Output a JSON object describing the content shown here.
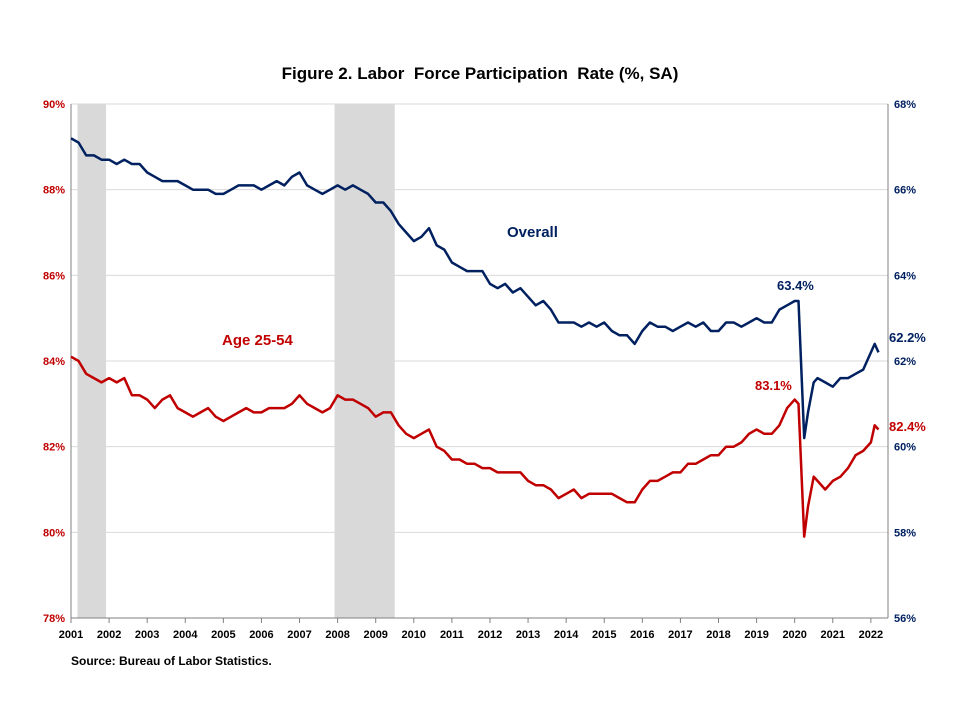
{
  "chart_data": {
    "type": "line",
    "title": "Figure 2. Labor  Force Participation  Rate (%, SA)",
    "source": "Source: Bureau of Labor Statistics.",
    "colors": {
      "overall": "#002060",
      "age_25_54": "#c00000",
      "recession": "#d9d9d9",
      "grid": "#d9d9d9"
    },
    "grid": true,
    "x_ticks": [
      "2001",
      "2002",
      "2003",
      "2004",
      "2005",
      "2006",
      "2007",
      "2008",
      "2009",
      "2010",
      "2011",
      "2012",
      "2013",
      "2014",
      "2015",
      "2016",
      "2017",
      "2018",
      "2019",
      "2020",
      "2021",
      "2022"
    ],
    "y_left": {
      "ticks": [
        "78%",
        "80%",
        "82%",
        "84%",
        "86%",
        "88%",
        "90%"
      ],
      "range": [
        78,
        90
      ]
    },
    "y_right": {
      "ticks": [
        "56%",
        "58%",
        "60%",
        "62%",
        "64%",
        "66%",
        "68%"
      ],
      "range": [
        56,
        68
      ]
    },
    "recessions": [
      {
        "start": 2001.17,
        "end": 2001.92
      },
      {
        "start": 2007.92,
        "end": 2009.5
      }
    ],
    "annotations": {
      "overall_label": "Overall",
      "age_label": "Age 25-54",
      "overall_peak": "63.4%",
      "overall_last": "62.2%",
      "age_peak": "83.1%",
      "age_last": "82.4%"
    },
    "series": [
      {
        "name": "Overall",
        "axis": "right",
        "points": [
          [
            2001.0,
            67.2
          ],
          [
            2001.2,
            67.1
          ],
          [
            2001.4,
            66.8
          ],
          [
            2001.6,
            66.8
          ],
          [
            2001.8,
            66.7
          ],
          [
            2002.0,
            66.7
          ],
          [
            2002.2,
            66.6
          ],
          [
            2002.4,
            66.7
          ],
          [
            2002.6,
            66.6
          ],
          [
            2002.8,
            66.6
          ],
          [
            2003.0,
            66.4
          ],
          [
            2003.2,
            66.3
          ],
          [
            2003.4,
            66.2
          ],
          [
            2003.6,
            66.2
          ],
          [
            2003.8,
            66.2
          ],
          [
            2004.0,
            66.1
          ],
          [
            2004.2,
            66.0
          ],
          [
            2004.4,
            66.0
          ],
          [
            2004.6,
            66.0
          ],
          [
            2004.8,
            65.9
          ],
          [
            2005.0,
            65.9
          ],
          [
            2005.2,
            66.0
          ],
          [
            2005.4,
            66.1
          ],
          [
            2005.6,
            66.1
          ],
          [
            2005.8,
            66.1
          ],
          [
            2006.0,
            66.0
          ],
          [
            2006.2,
            66.1
          ],
          [
            2006.4,
            66.2
          ],
          [
            2006.6,
            66.1
          ],
          [
            2006.8,
            66.3
          ],
          [
            2007.0,
            66.4
          ],
          [
            2007.2,
            66.1
          ],
          [
            2007.4,
            66.0
          ],
          [
            2007.6,
            65.9
          ],
          [
            2007.8,
            66.0
          ],
          [
            2008.0,
            66.1
          ],
          [
            2008.2,
            66.0
          ],
          [
            2008.4,
            66.1
          ],
          [
            2008.6,
            66.0
          ],
          [
            2008.8,
            65.9
          ],
          [
            2009.0,
            65.7
          ],
          [
            2009.2,
            65.7
          ],
          [
            2009.4,
            65.5
          ],
          [
            2009.6,
            65.2
          ],
          [
            2009.8,
            65.0
          ],
          [
            2010.0,
            64.8
          ],
          [
            2010.2,
            64.9
          ],
          [
            2010.4,
            65.1
          ],
          [
            2010.6,
            64.7
          ],
          [
            2010.8,
            64.6
          ],
          [
            2011.0,
            64.3
          ],
          [
            2011.2,
            64.2
          ],
          [
            2011.4,
            64.1
          ],
          [
            2011.6,
            64.1
          ],
          [
            2011.8,
            64.1
          ],
          [
            2012.0,
            63.8
          ],
          [
            2012.2,
            63.7
          ],
          [
            2012.4,
            63.8
          ],
          [
            2012.6,
            63.6
          ],
          [
            2012.8,
            63.7
          ],
          [
            2013.0,
            63.5
          ],
          [
            2013.2,
            63.3
          ],
          [
            2013.4,
            63.4
          ],
          [
            2013.6,
            63.2
          ],
          [
            2013.8,
            62.9
          ],
          [
            2014.0,
            62.9
          ],
          [
            2014.2,
            62.9
          ],
          [
            2014.4,
            62.8
          ],
          [
            2014.6,
            62.9
          ],
          [
            2014.8,
            62.8
          ],
          [
            2015.0,
            62.9
          ],
          [
            2015.2,
            62.7
          ],
          [
            2015.4,
            62.6
          ],
          [
            2015.6,
            62.6
          ],
          [
            2015.8,
            62.4
          ],
          [
            2016.0,
            62.7
          ],
          [
            2016.2,
            62.9
          ],
          [
            2016.4,
            62.8
          ],
          [
            2016.6,
            62.8
          ],
          [
            2016.8,
            62.7
          ],
          [
            2017.0,
            62.8
          ],
          [
            2017.2,
            62.9
          ],
          [
            2017.4,
            62.8
          ],
          [
            2017.6,
            62.9
          ],
          [
            2017.8,
            62.7
          ],
          [
            2018.0,
            62.7
          ],
          [
            2018.2,
            62.9
          ],
          [
            2018.4,
            62.9
          ],
          [
            2018.6,
            62.8
          ],
          [
            2018.8,
            62.9
          ],
          [
            2019.0,
            63.0
          ],
          [
            2019.2,
            62.9
          ],
          [
            2019.4,
            62.9
          ],
          [
            2019.6,
            63.2
          ],
          [
            2019.8,
            63.3
          ],
          [
            2020.0,
            63.4
          ],
          [
            2020.1,
            63.4
          ],
          [
            2020.25,
            60.2
          ],
          [
            2020.35,
            60.8
          ],
          [
            2020.5,
            61.5
          ],
          [
            2020.6,
            61.6
          ],
          [
            2020.8,
            61.5
          ],
          [
            2021.0,
            61.4
          ],
          [
            2021.2,
            61.6
          ],
          [
            2021.4,
            61.6
          ],
          [
            2021.6,
            61.7
          ],
          [
            2021.8,
            61.8
          ],
          [
            2022.0,
            62.2
          ],
          [
            2022.1,
            62.4
          ],
          [
            2022.2,
            62.2
          ]
        ]
      },
      {
        "name": "Age 25-54",
        "axis": "left",
        "points": [
          [
            2001.0,
            84.1
          ],
          [
            2001.2,
            84.0
          ],
          [
            2001.4,
            83.7
          ],
          [
            2001.6,
            83.6
          ],
          [
            2001.8,
            83.5
          ],
          [
            2002.0,
            83.6
          ],
          [
            2002.2,
            83.5
          ],
          [
            2002.4,
            83.6
          ],
          [
            2002.6,
            83.2
          ],
          [
            2002.8,
            83.2
          ],
          [
            2003.0,
            83.1
          ],
          [
            2003.2,
            82.9
          ],
          [
            2003.4,
            83.1
          ],
          [
            2003.6,
            83.2
          ],
          [
            2003.8,
            82.9
          ],
          [
            2004.0,
            82.8
          ],
          [
            2004.2,
            82.7
          ],
          [
            2004.4,
            82.8
          ],
          [
            2004.6,
            82.9
          ],
          [
            2004.8,
            82.7
          ],
          [
            2005.0,
            82.6
          ],
          [
            2005.2,
            82.7
          ],
          [
            2005.4,
            82.8
          ],
          [
            2005.6,
            82.9
          ],
          [
            2005.8,
            82.8
          ],
          [
            2006.0,
            82.8
          ],
          [
            2006.2,
            82.9
          ],
          [
            2006.4,
            82.9
          ],
          [
            2006.6,
            82.9
          ],
          [
            2006.8,
            83.0
          ],
          [
            2007.0,
            83.2
          ],
          [
            2007.2,
            83.0
          ],
          [
            2007.4,
            82.9
          ],
          [
            2007.6,
            82.8
          ],
          [
            2007.8,
            82.9
          ],
          [
            2008.0,
            83.2
          ],
          [
            2008.2,
            83.1
          ],
          [
            2008.4,
            83.1
          ],
          [
            2008.6,
            83.0
          ],
          [
            2008.8,
            82.9
          ],
          [
            2009.0,
            82.7
          ],
          [
            2009.2,
            82.8
          ],
          [
            2009.4,
            82.8
          ],
          [
            2009.6,
            82.5
          ],
          [
            2009.8,
            82.3
          ],
          [
            2010.0,
            82.2
          ],
          [
            2010.2,
            82.3
          ],
          [
            2010.4,
            82.4
          ],
          [
            2010.6,
            82.0
          ],
          [
            2010.8,
            81.9
          ],
          [
            2011.0,
            81.7
          ],
          [
            2011.2,
            81.7
          ],
          [
            2011.4,
            81.6
          ],
          [
            2011.6,
            81.6
          ],
          [
            2011.8,
            81.5
          ],
          [
            2012.0,
            81.5
          ],
          [
            2012.2,
            81.4
          ],
          [
            2012.4,
            81.4
          ],
          [
            2012.6,
            81.4
          ],
          [
            2012.8,
            81.4
          ],
          [
            2013.0,
            81.2
          ],
          [
            2013.2,
            81.1
          ],
          [
            2013.4,
            81.1
          ],
          [
            2013.6,
            81.0
          ],
          [
            2013.8,
            80.8
          ],
          [
            2014.0,
            80.9
          ],
          [
            2014.2,
            81.0
          ],
          [
            2014.4,
            80.8
          ],
          [
            2014.6,
            80.9
          ],
          [
            2014.8,
            80.9
          ],
          [
            2015.0,
            80.9
          ],
          [
            2015.2,
            80.9
          ],
          [
            2015.4,
            80.8
          ],
          [
            2015.6,
            80.7
          ],
          [
            2015.8,
            80.7
          ],
          [
            2016.0,
            81.0
          ],
          [
            2016.2,
            81.2
          ],
          [
            2016.4,
            81.2
          ],
          [
            2016.6,
            81.3
          ],
          [
            2016.8,
            81.4
          ],
          [
            2017.0,
            81.4
          ],
          [
            2017.2,
            81.6
          ],
          [
            2017.4,
            81.6
          ],
          [
            2017.6,
            81.7
          ],
          [
            2017.8,
            81.8
          ],
          [
            2018.0,
            81.8
          ],
          [
            2018.2,
            82.0
          ],
          [
            2018.4,
            82.0
          ],
          [
            2018.6,
            82.1
          ],
          [
            2018.8,
            82.3
          ],
          [
            2019.0,
            82.4
          ],
          [
            2019.2,
            82.3
          ],
          [
            2019.4,
            82.3
          ],
          [
            2019.6,
            82.5
          ],
          [
            2019.8,
            82.9
          ],
          [
            2020.0,
            83.1
          ],
          [
            2020.1,
            83.0
          ],
          [
            2020.25,
            79.9
          ],
          [
            2020.35,
            80.6
          ],
          [
            2020.5,
            81.3
          ],
          [
            2020.6,
            81.2
          ],
          [
            2020.8,
            81.0
          ],
          [
            2021.0,
            81.2
          ],
          [
            2021.2,
            81.3
          ],
          [
            2021.4,
            81.5
          ],
          [
            2021.6,
            81.8
          ],
          [
            2021.8,
            81.9
          ],
          [
            2022.0,
            82.1
          ],
          [
            2022.1,
            82.5
          ],
          [
            2022.2,
            82.4
          ]
        ]
      }
    ]
  }
}
